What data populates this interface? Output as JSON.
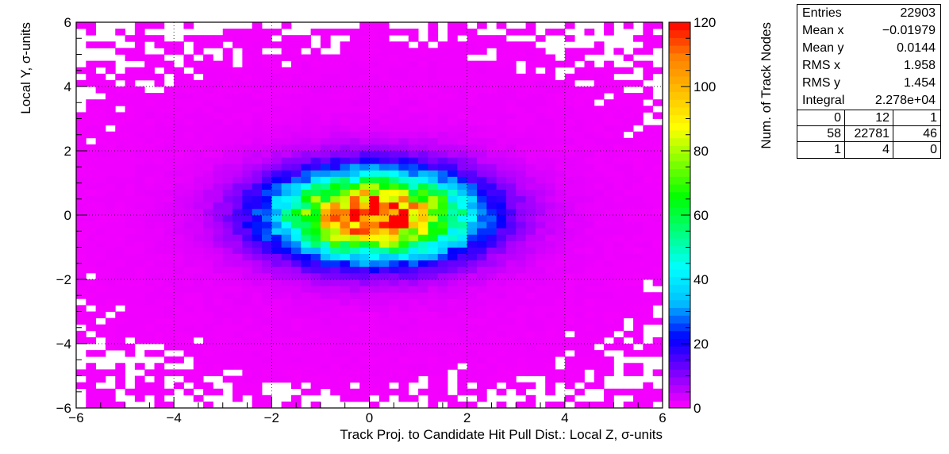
{
  "chart_data": {
    "type": "heatmap",
    "title": "",
    "xlabel": "Track Proj. to Candidate Hit Pull Dist.: Local Z, σ-units",
    "ylabel": "Local Y, σ-units",
    "zlabel": "Num. of Track Nodes",
    "xlim": [
      -6,
      6
    ],
    "ylim": [
      -6,
      6
    ],
    "zlim": [
      0,
      120
    ],
    "x_ticks": [
      "−6",
      "−4",
      "−2",
      "0",
      "2",
      "4",
      "6"
    ],
    "y_ticks": [
      "−6",
      "−4",
      "−2",
      "0",
      "2",
      "4",
      "6"
    ],
    "z_ticks": [
      "0",
      "20",
      "40",
      "60",
      "80",
      "100",
      "120"
    ],
    "grid": true,
    "bins": {
      "nx": 60,
      "ny": 60
    },
    "distribution": {
      "peak_value": 118,
      "peak_x": 0.1,
      "peak_y": 0.0,
      "sigma_x": 1.958,
      "sigma_y": 1.454
    },
    "colormap": [
      "#ff00ff",
      "#7f00ff",
      "#0000ff",
      "#00bfff",
      "#00ffff",
      "#00ff80",
      "#00ff00",
      "#80ff00",
      "#ffff00",
      "#ffbf00",
      "#ff8000",
      "#ff0000"
    ]
  },
  "stats": {
    "rows": [
      {
        "label": "Entries",
        "value": "22903"
      },
      {
        "label": "Mean x",
        "value": "−0.01979"
      },
      {
        "label": "Mean y",
        "value": "0.0144"
      },
      {
        "label": "RMS x",
        "value": "1.958"
      },
      {
        "label": "RMS y",
        "value": "1.454"
      },
      {
        "label": "Integral",
        "value": "2.278e+04"
      }
    ],
    "overflow": [
      [
        "0",
        "12",
        "1"
      ],
      [
        "58",
        "22781",
        "46"
      ],
      [
        "1",
        "4",
        "0"
      ]
    ]
  }
}
